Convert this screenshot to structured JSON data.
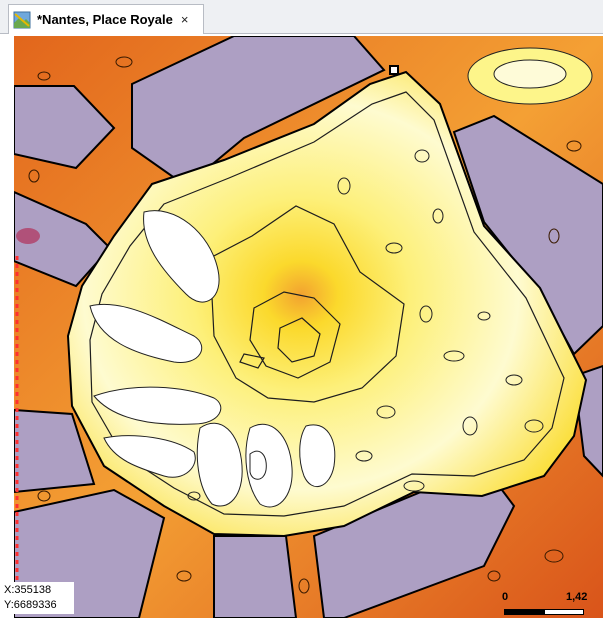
{
  "tab": {
    "title": "*Nantes, Place Royale",
    "close_glyph": "×",
    "icon": "map-layer-icon"
  },
  "map": {
    "description_colors": {
      "building": "#ad9fc3",
      "street_dark": "#d9541a",
      "street_mid": "#f08c28",
      "plaza_mid": "#fbd92c",
      "plaza_light": "#fdf79e",
      "plaza_white": "#ffffff",
      "selection_dash": "#ff3030"
    }
  },
  "coords": {
    "x": "X:355138",
    "y": "Y:6689336"
  },
  "scale": {
    "start": "0",
    "end": "1,42"
  }
}
